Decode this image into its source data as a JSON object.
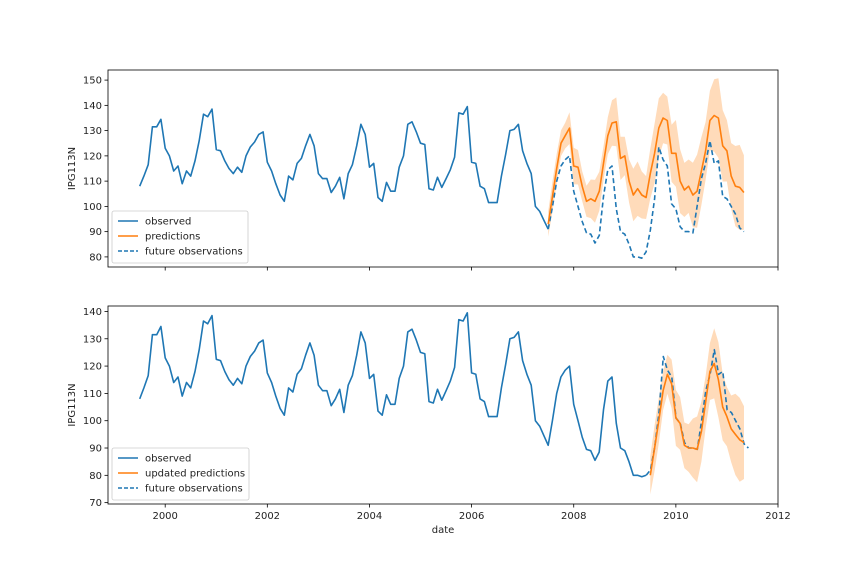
{
  "chart_data": [
    {
      "type": "line",
      "panel": "top",
      "title": "",
      "xlabel": "",
      "ylabel": "IPG113N",
      "xlim": [
        1998.88,
        2012.0
      ],
      "ylim": [
        76,
        154
      ],
      "xticks": [
        2000,
        2002,
        2004,
        2006,
        2008,
        2010,
        2012
      ],
      "xtick_labels": [],
      "yticks": [
        80,
        90,
        100,
        110,
        120,
        130,
        140,
        150
      ],
      "ytick_labels": [
        "80",
        "90",
        "100",
        "110",
        "120",
        "130",
        "140",
        "150"
      ],
      "grid": false,
      "legend_position": "lower-left",
      "legend": [
        "observed",
        "predictions",
        "future observations"
      ],
      "colors": {
        "observed": "#1f77b4",
        "predictions": "#ff7f0e",
        "band": "#ffcfa3"
      },
      "series": [
        {
          "name": "observed",
          "style": "solid",
          "start": 1999.5,
          "step": 0.08333,
          "values": [
            108,
            112,
            116.5,
            131.5,
            131.5,
            134.5,
            123,
            120,
            114,
            116,
            109,
            114,
            112,
            118,
            126,
            136.5,
            135.5,
            138.5,
            122.5,
            122,
            118,
            115,
            113,
            115.5,
            113.5,
            120,
            123.5,
            125.5,
            128.5,
            129.5,
            117.5,
            114,
            109,
            104.5,
            102,
            112,
            110.5,
            117,
            119,
            124,
            128.5,
            124,
            113,
            111,
            111,
            105.5,
            108,
            111.5,
            103,
            113,
            116.5,
            124,
            132.5,
            128.5,
            115.5,
            117,
            103.5,
            102,
            109.5,
            106,
            106,
            115.5,
            120,
            132.5,
            133.5,
            129.5,
            125,
            124.5,
            107,
            106.5,
            111.5,
            107.5,
            111,
            114.5,
            119.5,
            137,
            136.5,
            139.5,
            117.5,
            117,
            108,
            107,
            101.5,
            101.5,
            101.5,
            112,
            120.5,
            130,
            130.5,
            132.5,
            122,
            117,
            113,
            100,
            98,
            94.5,
            91
          ]
        },
        {
          "name": "predictions",
          "style": "solid",
          "start": 2007.5,
          "step": 0.08333,
          "values": [
            93,
            104,
            115,
            125,
            128,
            131,
            116,
            115.5,
            108,
            102,
            103,
            102,
            106,
            117,
            128,
            133,
            133.5,
            119,
            120,
            110,
            104.5,
            107,
            104.5,
            103.5,
            113,
            121,
            131,
            135,
            134,
            121,
            121,
            110,
            106.5,
            108,
            104.5,
            106,
            114,
            122,
            134,
            136,
            135,
            124,
            122,
            112,
            108,
            107.5,
            105.5
          ],
          "band_halfwidth_start": 5,
          "band_halfwidth_end": 15
        },
        {
          "name": "future observations",
          "style": "dashed",
          "start": 2007.5,
          "step": 0.08333,
          "values": [
            91,
            100,
            110,
            116,
            118.5,
            120,
            106,
            100,
            94,
            89.5,
            89,
            85.5,
            88.5,
            104,
            114.5,
            116,
            99,
            90,
            89,
            85,
            80,
            80,
            79.5,
            82,
            90.5,
            103,
            123.5,
            118.5,
            116,
            101,
            99,
            92,
            90,
            90,
            89.5,
            100,
            111,
            117,
            126,
            117,
            118,
            104,
            103,
            100,
            97,
            91.5,
            90
          ]
        }
      ]
    },
    {
      "type": "line",
      "panel": "bottom",
      "title": "",
      "xlabel": "date",
      "ylabel": "IPG113N",
      "xlim": [
        1998.88,
        2012.0
      ],
      "ylim": [
        69.5,
        142
      ],
      "xticks": [
        2000,
        2002,
        2004,
        2006,
        2008,
        2010,
        2012
      ],
      "xtick_labels": [
        "2000",
        "2002",
        "2004",
        "2006",
        "2008",
        "2010",
        "2012"
      ],
      "yticks": [
        70,
        80,
        90,
        100,
        110,
        120,
        130,
        140
      ],
      "ytick_labels": [
        "70",
        "80",
        "90",
        "100",
        "110",
        "120",
        "130",
        "140"
      ],
      "grid": false,
      "legend_position": "lower-left",
      "legend": [
        "observed",
        "updated predictions",
        "future observations"
      ],
      "colors": {
        "observed": "#1f77b4",
        "predictions": "#ff7f0e",
        "band": "#ffcfa3"
      },
      "series": [
        {
          "name": "observed",
          "style": "solid",
          "start": 1999.5,
          "step": 0.08333,
          "values": [
            108,
            112,
            116.5,
            131.5,
            131.5,
            134.5,
            123,
            120,
            114,
            116,
            109,
            114,
            112,
            118,
            126,
            136.5,
            135.5,
            138.5,
            122.5,
            122,
            118,
            115,
            113,
            115.5,
            113.5,
            120,
            123.5,
            125.5,
            128.5,
            129.5,
            117.5,
            114,
            109,
            104.5,
            102,
            112,
            110.5,
            117,
            119,
            124,
            128.5,
            124,
            113,
            111,
            111,
            105.5,
            108,
            111.5,
            103,
            113,
            116.5,
            124,
            132.5,
            128.5,
            115.5,
            117,
            103.5,
            102,
            109.5,
            106,
            106,
            115.5,
            120,
            132.5,
            133.5,
            129.5,
            125,
            124.5,
            107,
            106.5,
            111.5,
            107.5,
            111,
            114.5,
            119.5,
            137,
            136.5,
            139.5,
            117.5,
            117,
            108,
            107,
            101.5,
            101.5,
            101.5,
            112,
            120.5,
            130,
            130.5,
            132.5,
            122,
            117,
            113,
            100,
            98,
            94.5,
            91,
            100,
            110,
            116,
            118.5,
            120,
            106,
            100,
            94,
            89.5,
            89,
            85.5,
            88.5,
            104,
            114.5,
            116,
            99,
            90,
            89,
            85,
            80,
            80,
            79.5,
            80
          ]
        },
        {
          "name": "updated predictions",
          "style": "solid",
          "start": 2009.5,
          "step": 0.08333,
          "values": [
            80,
            90,
            100,
            111,
            117,
            113.5,
            101,
            99,
            91,
            90,
            90,
            89.5,
            96,
            107,
            118,
            121,
            115,
            105,
            101.5,
            97,
            95,
            93,
            92
          ],
          "band_halfwidth_start": 7,
          "band_halfwidth_end": 14
        },
        {
          "name": "future observations",
          "style": "dashed",
          "start": 2009.42,
          "step": 0.08333,
          "values": [
            80,
            82,
            90.5,
            103,
            123.5,
            118.5,
            116,
            101,
            99,
            92,
            90,
            90,
            89.5,
            100,
            111,
            117,
            126,
            117,
            118,
            104,
            103,
            100,
            97,
            91.5,
            90
          ]
        }
      ]
    }
  ]
}
